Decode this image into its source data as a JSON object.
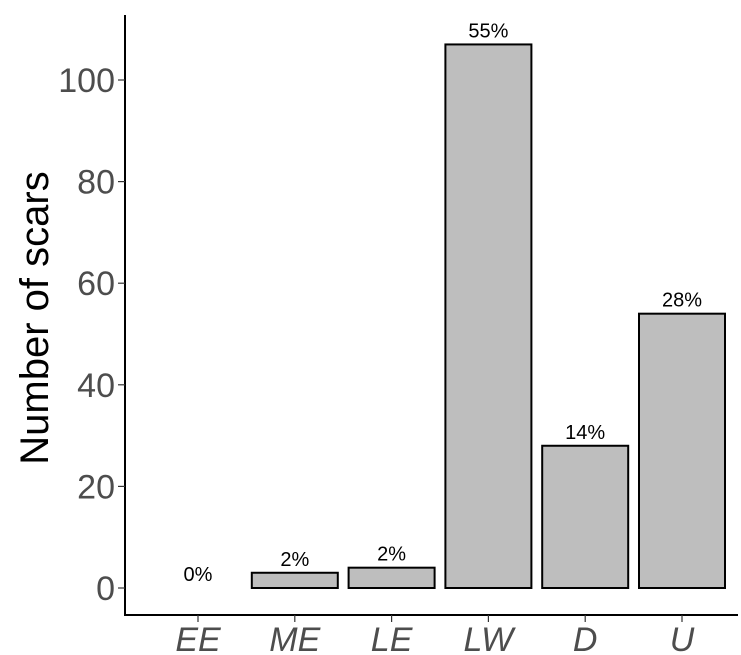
{
  "chart_data": {
    "type": "bar",
    "title": "",
    "xlabel": "",
    "ylabel": "Number of scars",
    "categories": [
      "EE",
      "ME",
      "LE",
      "LW",
      "D",
      "U"
    ],
    "values": [
      0,
      3,
      4,
      107,
      28,
      54
    ],
    "data_labels": [
      "0%",
      "2%",
      "2%",
      "55%",
      "14%",
      "28%"
    ],
    "ylim": [
      0,
      112
    ],
    "yticks": [
      0,
      20,
      40,
      60,
      80,
      100
    ],
    "ytick_labels": [
      "0",
      "20",
      "40",
      "60",
      "80",
      "100"
    ],
    "grid": false,
    "legend": "none",
    "bar_color": "#bebebe",
    "bar_edge_color": "#000000"
  }
}
